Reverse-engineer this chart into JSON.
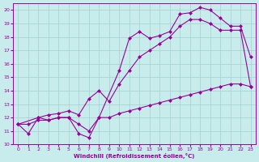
{
  "xlabel": "Windchill (Refroidissement éolien,°C)",
  "bg_color": "#c8ecec",
  "grid_color": "#aad4d4",
  "line_color": "#990099",
  "xlim": [
    -0.5,
    23.5
  ],
  "ylim": [
    10,
    20.5
  ],
  "xticks": [
    0,
    1,
    2,
    3,
    4,
    5,
    6,
    7,
    8,
    9,
    10,
    11,
    12,
    13,
    14,
    15,
    16,
    17,
    18,
    19,
    20,
    21,
    22,
    23
  ],
  "yticks": [
    10,
    11,
    12,
    13,
    14,
    15,
    16,
    17,
    18,
    19,
    20
  ],
  "line1_x": [
    0,
    1,
    2,
    3,
    4,
    5,
    6,
    7,
    8,
    10,
    11,
    12,
    13,
    14,
    15,
    16,
    17,
    18,
    19,
    20,
    21,
    22,
    23
  ],
  "line1_y": [
    11.5,
    10.8,
    12.0,
    11.8,
    12.0,
    12.0,
    10.8,
    10.5,
    12.0,
    15.5,
    17.9,
    18.4,
    17.9,
    18.1,
    18.4,
    19.7,
    19.8,
    20.2,
    20.0,
    19.4,
    18.8,
    18.8,
    16.5
  ],
  "line2_x": [
    0,
    1,
    2,
    3,
    4,
    5,
    6,
    7,
    8,
    9,
    10,
    11,
    12,
    13,
    14,
    15,
    16,
    17,
    18,
    19,
    20,
    21,
    22,
    23
  ],
  "line2_y": [
    11.5,
    11.5,
    11.8,
    11.8,
    12.0,
    12.0,
    11.5,
    11.0,
    12.0,
    12.0,
    12.3,
    12.5,
    12.7,
    12.9,
    13.1,
    13.3,
    13.5,
    13.7,
    13.9,
    14.1,
    14.3,
    14.5,
    14.5,
    14.3
  ],
  "line3_x": [
    0,
    2,
    3,
    4,
    5,
    6,
    7,
    8,
    9,
    10,
    11,
    12,
    13,
    14,
    15,
    16,
    17,
    18,
    19,
    20,
    21,
    22,
    23
  ],
  "line3_y": [
    11.5,
    12.0,
    12.2,
    12.3,
    12.5,
    12.2,
    13.4,
    14.0,
    13.2,
    14.5,
    15.5,
    16.5,
    17.0,
    17.5,
    18.0,
    18.8,
    19.3,
    19.3,
    19.0,
    18.5,
    18.5,
    18.5,
    14.3
  ]
}
